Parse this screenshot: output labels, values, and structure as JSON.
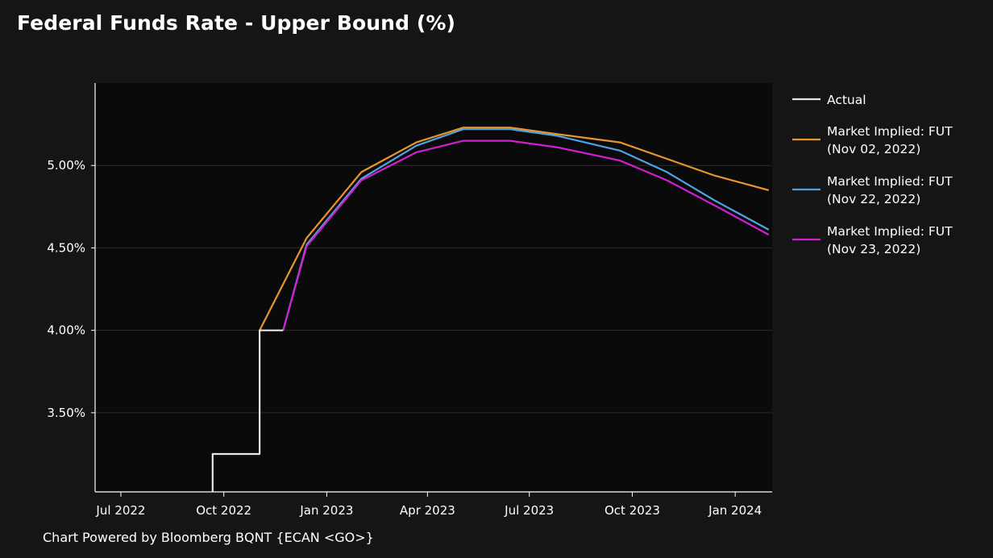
{
  "chart_data": {
    "type": "line",
    "title": "Federal Funds Rate - Upper Bound (%)",
    "footer": "Chart Powered by Bloomberg BQNT {ECAN <GO>}",
    "xlabel": "",
    "ylabel": "",
    "x_range": [
      "2022-06-08",
      "2024-02-03"
    ],
    "y_range": [
      3.02,
      5.5
    ],
    "x_ticks": [
      {
        "date": "2022-07-01",
        "label": "Jul 2022"
      },
      {
        "date": "2022-10-01",
        "label": "Oct 2022"
      },
      {
        "date": "2023-01-01",
        "label": "Jan 2023"
      },
      {
        "date": "2023-04-01",
        "label": "Apr 2023"
      },
      {
        "date": "2023-07-01",
        "label": "Jul 2023"
      },
      {
        "date": "2023-10-01",
        "label": "Oct 2023"
      },
      {
        "date": "2024-01-01",
        "label": "Jan 2024"
      }
    ],
    "y_ticks": [
      {
        "value": 3.5,
        "label": "3.50%"
      },
      {
        "value": 4.0,
        "label": "4.00%"
      },
      {
        "value": 4.5,
        "label": "4.50%"
      },
      {
        "value": 5.0,
        "label": "5.00%"
      }
    ],
    "grid": true,
    "legend_position": "right",
    "series": [
      {
        "name": "Actual",
        "color": "#e6e6e6",
        "step": true,
        "points": [
          [
            "2022-09-21",
            3.02
          ],
          [
            "2022-09-21",
            3.25
          ],
          [
            "2022-11-02",
            3.25
          ],
          [
            "2022-11-02",
            4.0
          ],
          [
            "2022-11-23",
            4.0
          ]
        ]
      },
      {
        "name": "Market Implied: FUT\n(Nov 02, 2022)",
        "color": "#e8952e",
        "points": [
          [
            "2022-11-02",
            4.0
          ],
          [
            "2022-12-14",
            4.56
          ],
          [
            "2023-02-01",
            4.96
          ],
          [
            "2023-03-22",
            5.14
          ],
          [
            "2023-05-03",
            5.23
          ],
          [
            "2023-06-14",
            5.23
          ],
          [
            "2023-07-26",
            5.19
          ],
          [
            "2023-09-20",
            5.14
          ],
          [
            "2023-11-01",
            5.04
          ],
          [
            "2023-12-13",
            4.94
          ],
          [
            "2024-01-31",
            4.85
          ]
        ]
      },
      {
        "name": "Market Implied: FUT\n(Nov 22, 2022)",
        "color": "#4fa3e0",
        "points": [
          [
            "2022-11-23",
            4.0
          ],
          [
            "2022-12-14",
            4.52
          ],
          [
            "2023-02-01",
            4.92
          ],
          [
            "2023-03-22",
            5.12
          ],
          [
            "2023-05-03",
            5.22
          ],
          [
            "2023-06-14",
            5.22
          ],
          [
            "2023-07-26",
            5.18
          ],
          [
            "2023-09-20",
            5.09
          ],
          [
            "2023-11-01",
            4.96
          ],
          [
            "2023-12-13",
            4.79
          ],
          [
            "2024-01-31",
            4.61
          ]
        ]
      },
      {
        "name": "Market Implied: FUT\n(Nov 23, 2022)",
        "color": "#d21fd2",
        "points": [
          [
            "2022-11-23",
            4.0
          ],
          [
            "2022-12-14",
            4.51
          ],
          [
            "2023-02-01",
            4.91
          ],
          [
            "2023-03-22",
            5.08
          ],
          [
            "2023-05-03",
            5.15
          ],
          [
            "2023-06-14",
            5.15
          ],
          [
            "2023-07-26",
            5.11
          ],
          [
            "2023-09-20",
            5.03
          ],
          [
            "2023-11-01",
            4.91
          ],
          [
            "2023-12-13",
            4.76
          ],
          [
            "2024-01-31",
            4.58
          ]
        ]
      }
    ]
  }
}
